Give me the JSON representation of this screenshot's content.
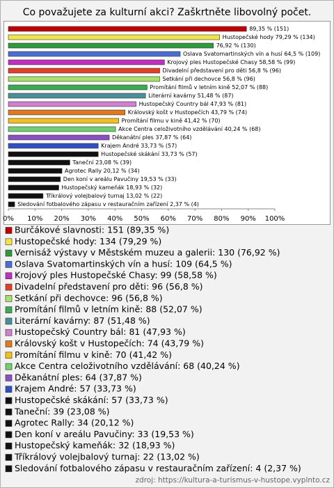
{
  "chart_data": {
    "type": "bar",
    "orientation": "horizontal",
    "title": "Co považujete za kulturní akci? Zaškrtněte libovolný počet.",
    "values": [
      89.35,
      79.29,
      76.92,
      64.5,
      58.58,
      56.8,
      56.8,
      52.07,
      51.48,
      47.93,
      43.79,
      41.42,
      40.24,
      37.87,
      33.73,
      33.73,
      23.08,
      20.12,
      19.53,
      18.93,
      13.02,
      2.37
    ],
    "value_labels": [
      "89,35 % (151)",
      "Hustopečské hody 79,29 % (134)",
      "76,92 % (130)",
      "Oslava Svatomartinských vín a husí 64,5 % (109)",
      "Krojový ples Hustopečské Chasy 58,58 % (99)",
      "Divadelní představení pro děti 56,8 % (96)",
      "Setkání při dechovce 56,8 % (96)",
      "Promítání filmů v letním kině 52,07 % (88)",
      "Literární kavárny 51,48 % (87)",
      "Hustopečský Country bál 47,93 % (81)",
      "Královský košt v Hustopečích 43,79 % (74)",
      "Promítání filmu v kině 41,42 % (70)",
      "Akce Centra celoživotního vzdělávání 40,24 % (68)",
      "Děkanátní ples 37,87 % (64)",
      "Krajem André 33,73 % (57)",
      "Hustopečské skákání 33,73 % (57)",
      "Taneční 23,08 % (39)",
      "Agrotec Rally 20,12 % (34)",
      "Den koní v areálu Pavučiny 19,53 % (33)",
      "Hustopečský kameňák 18,93 % (32)",
      "Tříkrálový volejbalový turnaj 13,02 % (22)",
      "Sledování fotbalového zápasu v restauračním zařízení 2,37 % (4)"
    ],
    "legend": [
      "Burčákové slavnosti: 151 (89,35 %)",
      "Hustopečské hody: 134 (79,29 %)",
      "Vernisáž výstavy v Městském muzeu a galerii: 130 (76,92 %)",
      "Oslava Svatomartinských vín a husí: 109 (64,5 %)",
      "Krojový ples Hustopečské Chasy: 99 (58,58 %)",
      "Divadelní představení pro děti: 96 (56,8 %)",
      "Setkání při dechovce: 96 (56,8 %)",
      "Promítání filmů v letním kině: 88 (52,07 %)",
      "Literární kavárny: 87 (51,48 %)",
      "Hustopečský Country bál: 81 (47,93 %)",
      "Královský košt v Hustopečích: 74 (43,79 %)",
      "Promítání filmu v kině: 70 (41,42 %)",
      "Akce Centra celoživotního vzdělávání: 68 (40,24 %)",
      "Děkanátní ples: 64 (37,87 %)",
      "Krajem André: 57 (33,73 %)",
      "Hustopečské skákání: 57 (33,73 %)",
      "Taneční: 39 (23,08 %)",
      "Agrotec Rally: 34 (20,12 %)",
      "Den koní v areálu Pavučiny: 33 (19,53 %)",
      "Hustopečský kameňák: 32 (18,93 %)",
      "Tříkrálový volejbalový turnaj: 22 (13,02 %)",
      "Sledování fotbalového zápasu v restauračním zařízení: 4 (2,37 %)"
    ],
    "colors": [
      "#c00000",
      "#f3e34a",
      "#2e9a3e",
      "#4a6fd0",
      "#c030c0",
      "#e0402a",
      "#a8e070",
      "#3caa50",
      "#4a8f9a",
      "#d080d0",
      "#e07a20",
      "#f0c020",
      "#70d070",
      "#8a50c0",
      "#3050c0",
      "#111111",
      "#111111",
      "#111111",
      "#111111",
      "#111111",
      "#111111",
      "#111111"
    ],
    "xlim": [
      0,
      100
    ],
    "xticks": [
      {
        "value": 0,
        "label": "0%"
      },
      {
        "value": 10,
        "label": "10%"
      },
      {
        "value": 20,
        "label": "20%"
      },
      {
        "value": 30,
        "label": "30%"
      },
      {
        "value": 40,
        "label": "40%"
      },
      {
        "value": 50,
        "label": "50%"
      },
      {
        "value": 60,
        "label": "60%"
      },
      {
        "value": 70,
        "label": "70%"
      },
      {
        "value": 80,
        "label": "80%"
      },
      {
        "value": 90,
        "label": "90%"
      },
      {
        "value": 100,
        "label": "100%"
      }
    ],
    "source": "zdroj: https://kultura-a-turismus-v-hustope.vyplnto.cz"
  }
}
